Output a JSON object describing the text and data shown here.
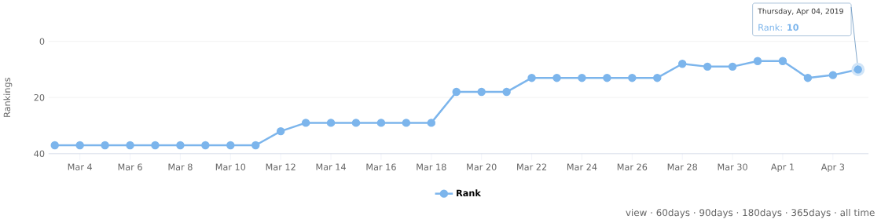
{
  "chart_data": {
    "type": "line",
    "ylabel": "Rankings",
    "legend": "bottom",
    "grid": "y",
    "marker": "circle",
    "line_style": "solid",
    "x": [
      "2019-03-03",
      "2019-03-04",
      "2019-03-05",
      "2019-03-06",
      "2019-03-07",
      "2019-03-08",
      "2019-03-09",
      "2019-03-10",
      "2019-03-11",
      "2019-03-12",
      "2019-03-13",
      "2019-03-14",
      "2019-03-15",
      "2019-03-16",
      "2019-03-17",
      "2019-03-18",
      "2019-03-19",
      "2019-03-20",
      "2019-03-21",
      "2019-03-22",
      "2019-03-23",
      "2019-03-24",
      "2019-03-25",
      "2019-03-26",
      "2019-03-27",
      "2019-03-28",
      "2019-03-29",
      "2019-03-30",
      "2019-03-31",
      "2019-04-01",
      "2019-04-02",
      "2019-04-03",
      "2019-04-04"
    ],
    "series": [
      {
        "name": "Rank",
        "color": "#7cb5ec",
        "values": [
          37,
          37,
          37,
          37,
          37,
          37,
          37,
          37,
          37,
          32,
          29,
          29,
          29,
          29,
          29,
          29,
          18,
          18,
          18,
          13,
          13,
          13,
          13,
          13,
          13,
          8,
          9,
          9,
          7,
          7,
          13,
          12,
          10
        ]
      }
    ],
    "xlim": [
      "2019-03-02T18:00",
      "2019-04-04T10:00"
    ],
    "xticks": [
      {
        "value": "2019-03-04",
        "label": "Mar 4"
      },
      {
        "value": "2019-03-06",
        "label": "Mar 6"
      },
      {
        "value": "2019-03-08",
        "label": "Mar 8"
      },
      {
        "value": "2019-03-10",
        "label": "Mar 10"
      },
      {
        "value": "2019-03-12",
        "label": "Mar 12"
      },
      {
        "value": "2019-03-14",
        "label": "Mar 14"
      },
      {
        "value": "2019-03-16",
        "label": "Mar 16"
      },
      {
        "value": "2019-03-18",
        "label": "Mar 18"
      },
      {
        "value": "2019-03-20",
        "label": "Mar 20"
      },
      {
        "value": "2019-03-22",
        "label": "Mar 22"
      },
      {
        "value": "2019-03-24",
        "label": "Mar 24"
      },
      {
        "value": "2019-03-26",
        "label": "Mar 26"
      },
      {
        "value": "2019-03-28",
        "label": "Mar 28"
      },
      {
        "value": "2019-03-30",
        "label": "Mar 30"
      },
      {
        "value": "2019-04-01",
        "label": "Apr 1"
      },
      {
        "value": "2019-04-03",
        "label": "Apr 3"
      }
    ],
    "ylim": [
      40,
      0
    ],
    "yticks": [
      0,
      20,
      40
    ],
    "annotations": [
      {
        "text": "Thursday, Apr 04, 2019",
        "x": "2019-04-04",
        "y": 10
      },
      "Rank: **10**",
      "view · 60days · 90days · 180days · 365days · all time"
    ]
  }
}
